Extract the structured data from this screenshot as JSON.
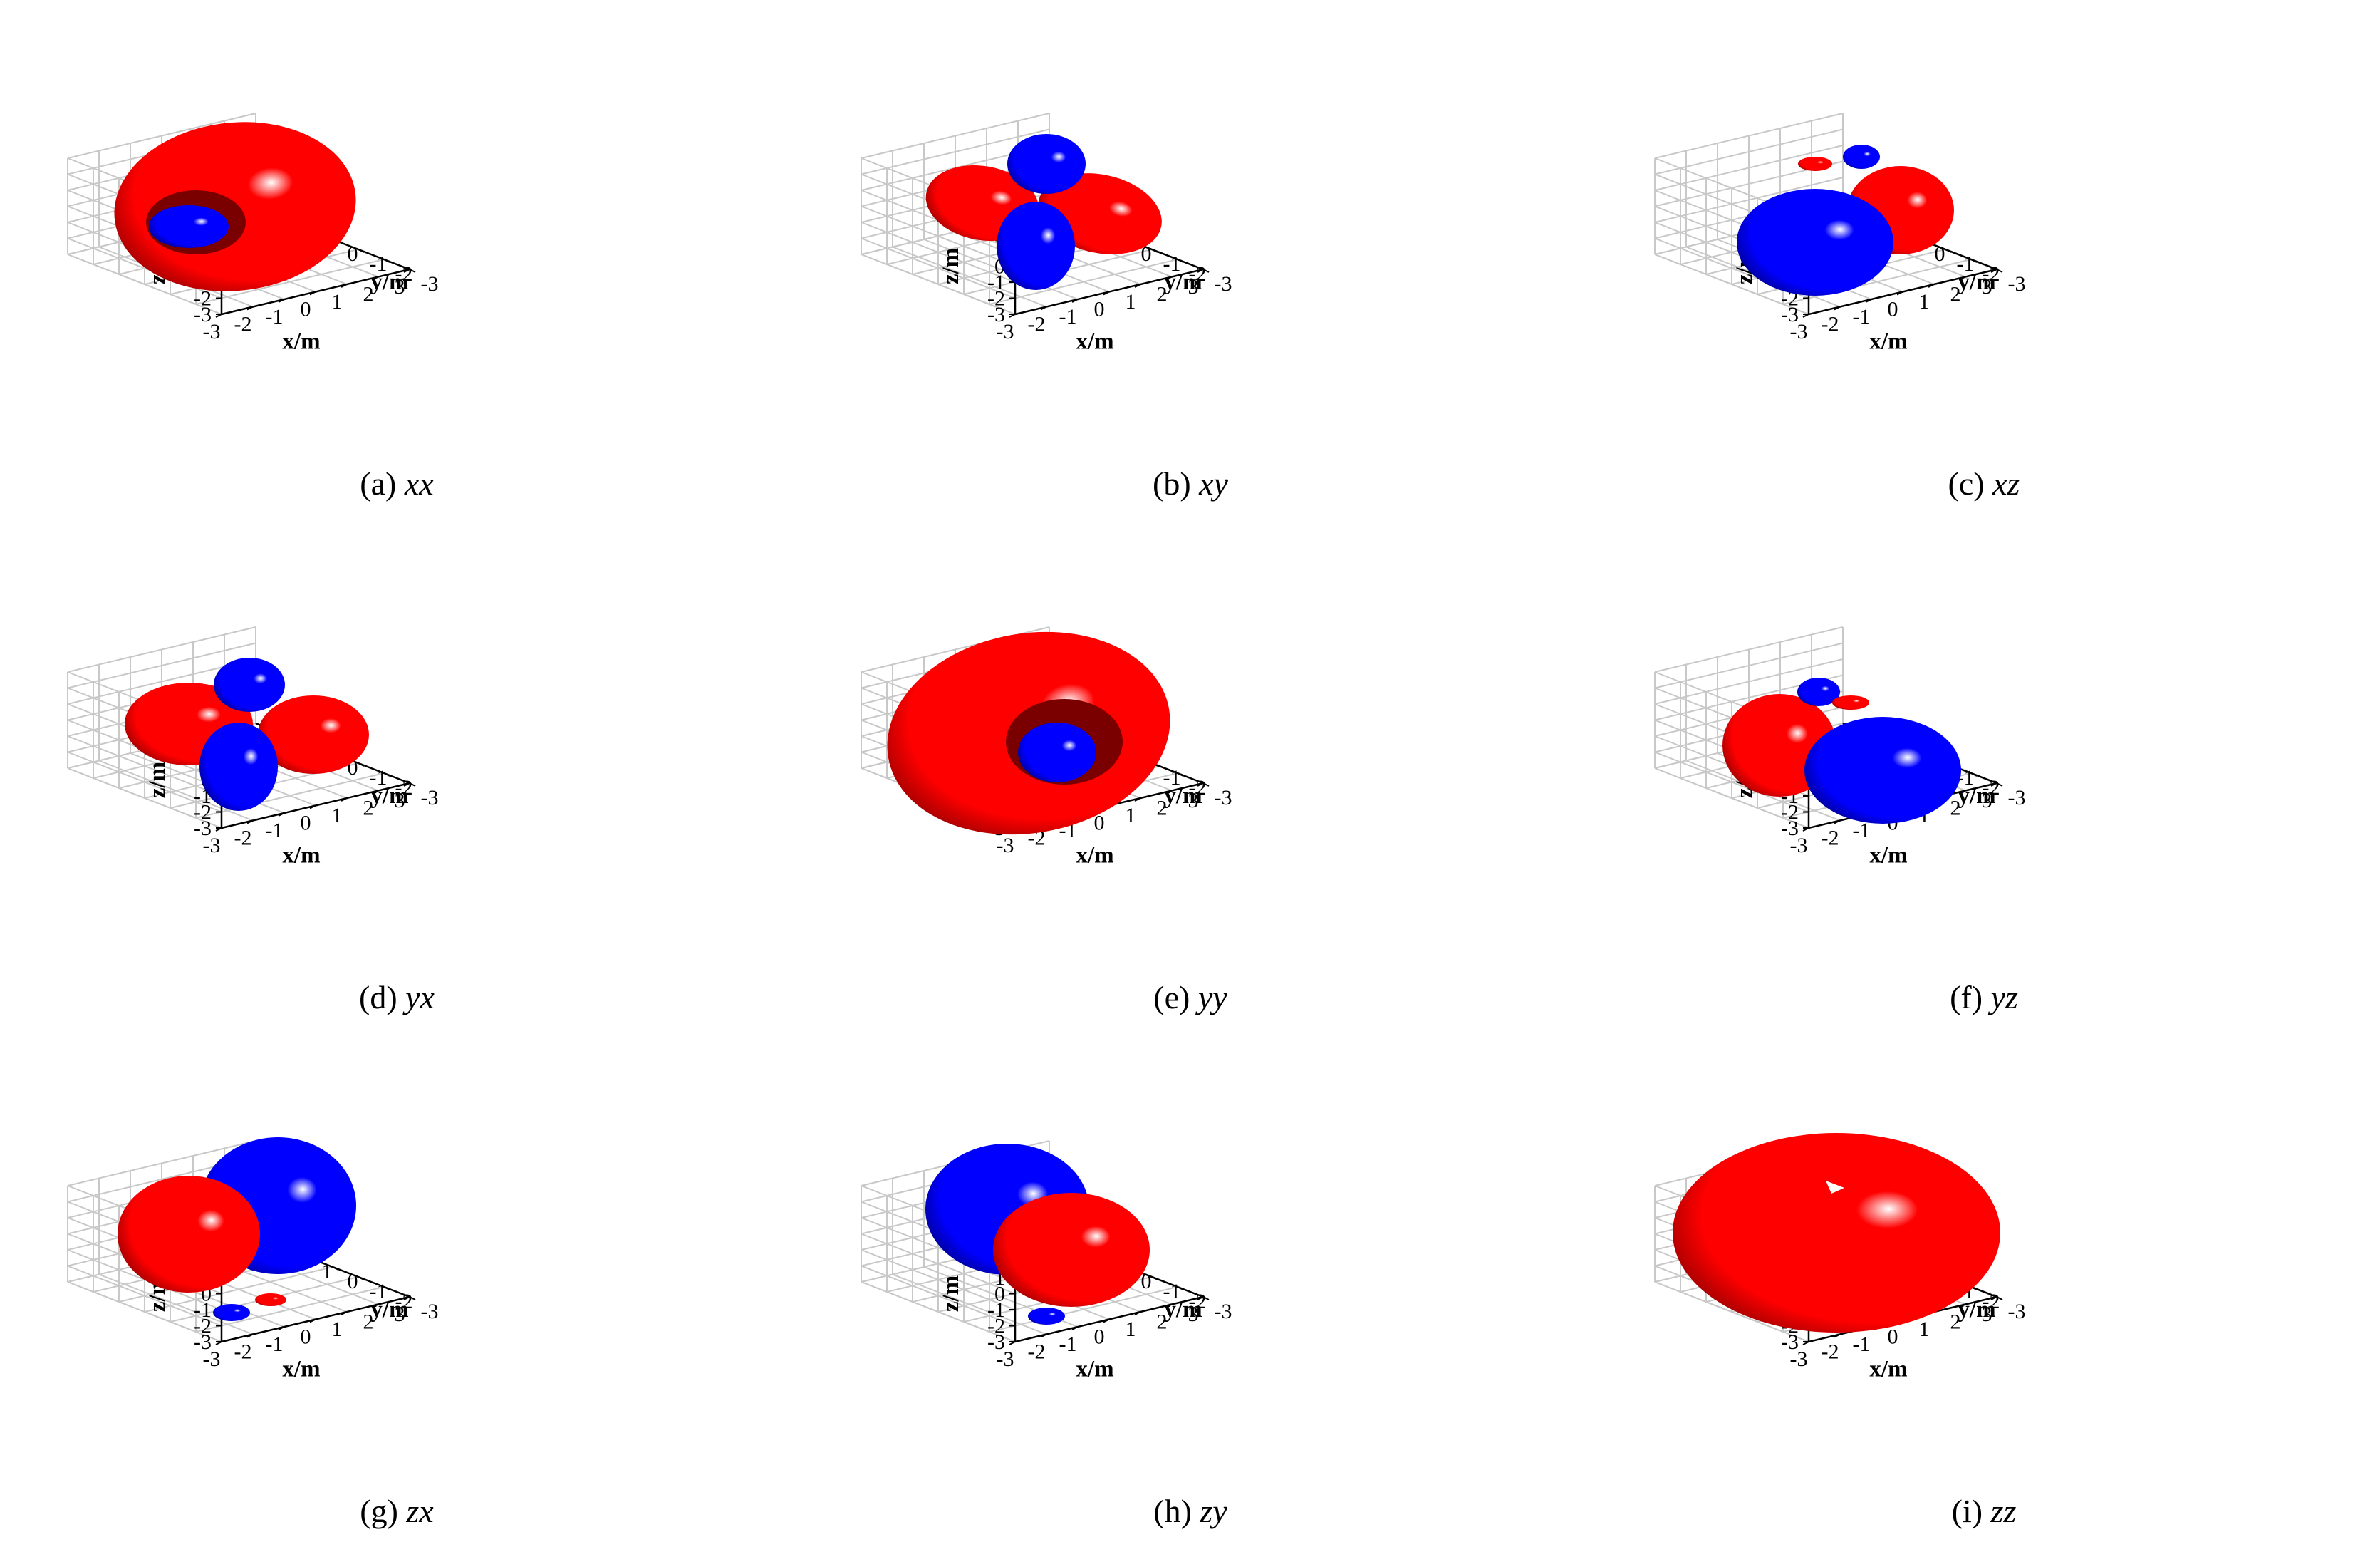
{
  "colors": {
    "positive": "#ff0000",
    "negative": "#0000ff",
    "grid": "#c8c8c8",
    "axis": "#000000"
  },
  "chart_data": {
    "type": "3d-surface",
    "grid": true,
    "axes": {
      "x": {
        "label": "x/m",
        "range": [
          -3,
          3
        ],
        "ticks": [
          "-3",
          "-2",
          "-1",
          "0",
          "1",
          "2",
          "3"
        ]
      },
      "y": {
        "label": "y/m",
        "range": [
          -3,
          3
        ],
        "ticks": [
          "-3",
          "-2",
          "-1",
          "0",
          "1",
          "2",
          "3"
        ]
      },
      "z": {
        "label": "z/m",
        "range": [
          -3,
          3
        ],
        "ticks": [
          "-3",
          "-2",
          "-1",
          "0",
          "1",
          "2",
          "3"
        ]
      }
    },
    "panels": [
      {
        "tag": "(a)",
        "component": "xx",
        "shape": "torus-with-inner-lobe",
        "lobes": [
          "positive-torus",
          "negative-inner"
        ]
      },
      {
        "tag": "(b)",
        "component": "xy",
        "shape": "four-lobe",
        "lobes": [
          "positive",
          "positive",
          "negative",
          "negative"
        ]
      },
      {
        "tag": "(c)",
        "component": "xz",
        "shape": "two-lobe",
        "lobes": [
          "negative-large",
          "positive-large",
          "positive-small",
          "negative-small"
        ]
      },
      {
        "tag": "(d)",
        "component": "yx",
        "shape": "four-lobe",
        "lobes": [
          "positive",
          "positive",
          "negative",
          "negative"
        ]
      },
      {
        "tag": "(e)",
        "component": "yy",
        "shape": "torus-with-inner-lobe",
        "lobes": [
          "positive-torus",
          "negative-inner"
        ]
      },
      {
        "tag": "(f)",
        "component": "yz",
        "shape": "two-lobe",
        "lobes": [
          "positive-large",
          "negative-large",
          "negative-small",
          "positive-small"
        ]
      },
      {
        "tag": "(g)",
        "component": "zx",
        "shape": "two-lobe",
        "lobes": [
          "positive-large",
          "negative-large",
          "negative-small",
          "positive-small"
        ]
      },
      {
        "tag": "(h)",
        "component": "zy",
        "shape": "two-lobe",
        "lobes": [
          "negative-large",
          "positive-large",
          "negative-small"
        ]
      },
      {
        "tag": "(i)",
        "component": "zz",
        "shape": "torus",
        "lobes": [
          "positive-torus"
        ]
      }
    ]
  }
}
